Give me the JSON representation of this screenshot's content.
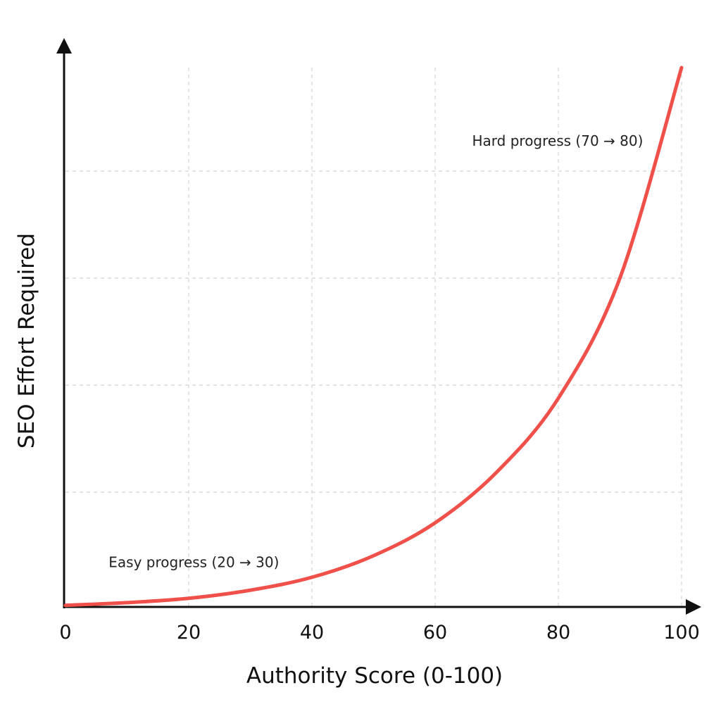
{
  "chart_data": {
    "type": "line",
    "title": "",
    "xlabel": "Authority Score (0-100)",
    "ylabel": "SEO Effort Required",
    "xlim": [
      0,
      100
    ],
    "ylim": [
      0,
      100
    ],
    "x_ticks": [
      0,
      20,
      40,
      60,
      80,
      100
    ],
    "x_tick_labels": [
      "0",
      "20",
      "40",
      "60",
      "80",
      "100"
    ],
    "y_tick_labels_shown": false,
    "grid": true,
    "legend": "none",
    "series": [
      {
        "color": "#f0504a",
        "x": [
          0,
          10,
          20,
          30,
          40,
          50,
          60,
          70,
          80,
          90,
          100
        ],
        "y": [
          0.3,
          0.8,
          1.6,
          3.1,
          5.5,
          9.5,
          15.6,
          25.0,
          38.7,
          61.0,
          100.0
        ]
      }
    ],
    "annotations": [
      {
        "text": "Easy progress (20 → 30)",
        "x": 7,
        "y": 7.4
      },
      {
        "text": "Hard progress (70 → 80)",
        "x": 66,
        "y": 85.5
      }
    ]
  }
}
